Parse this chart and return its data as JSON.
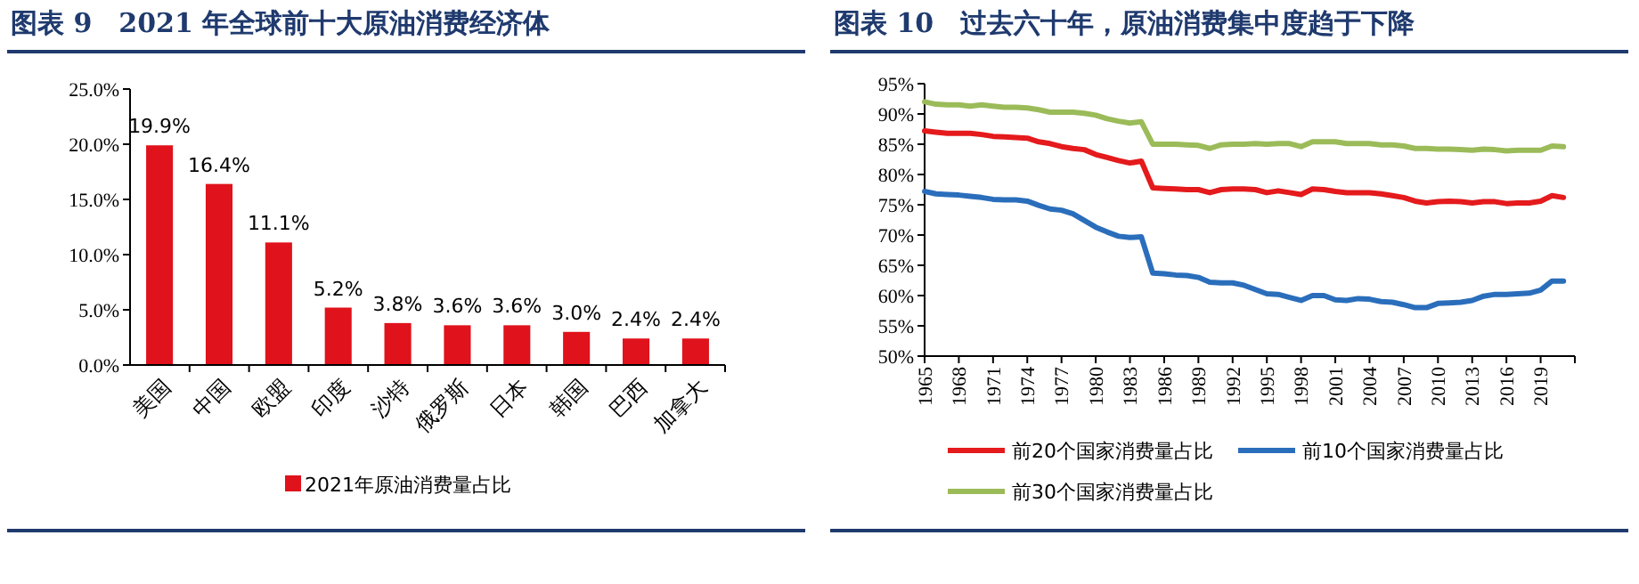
{
  "chart_data": [
    {
      "type": "bar",
      "title": "图表 9　2021 年全球前十大原油消费经济体",
      "categories": [
        "美国",
        "中国",
        "欧盟",
        "印度",
        "沙特",
        "俄罗斯",
        "日本",
        "韩国",
        "巴西",
        "加拿大"
      ],
      "series": [
        {
          "name": "2021年原油消费量占比",
          "color": "#e0121b",
          "values": [
            19.9,
            16.4,
            11.1,
            5.2,
            3.8,
            3.6,
            3.6,
            3.0,
            2.4,
            2.4
          ],
          "value_labels": [
            "19.9%",
            "16.4%",
            "11.1%",
            "5.2%",
            "3.8%",
            "3.6%",
            "3.6%",
            "3.0%",
            "2.4%",
            "2.4%"
          ]
        }
      ],
      "ylim": [
        0,
        25
      ],
      "yticks": [
        {
          "value": 0,
          "label": "0.0%"
        },
        {
          "value": 5,
          "label": "5.0%"
        },
        {
          "value": 10,
          "label": "10.0%"
        },
        {
          "value": 15,
          "label": "15.0%"
        },
        {
          "value": 20,
          "label": "20.0%"
        },
        {
          "value": 25,
          "label": "25.0%"
        }
      ],
      "legend": "bottom"
    },
    {
      "type": "line",
      "title": "图表 10　过去六十年，原油消费集中度趋于下降",
      "x": [
        1965,
        1966,
        1967,
        1968,
        1969,
        1970,
        1971,
        1972,
        1973,
        1974,
        1975,
        1976,
        1977,
        1978,
        1979,
        1980,
        1981,
        1982,
        1983,
        1984,
        1985,
        1986,
        1987,
        1988,
        1989,
        1990,
        1991,
        1992,
        1993,
        1994,
        1995,
        1996,
        1997,
        1998,
        1999,
        2000,
        2001,
        2002,
        2003,
        2004,
        2005,
        2006,
        2007,
        2008,
        2009,
        2010,
        2011,
        2012,
        2013,
        2014,
        2015,
        2016,
        2017,
        2018,
        2019,
        2020,
        2021
      ],
      "series": [
        {
          "name": "前20个国家消费量占比",
          "color": "#e41a1c",
          "values": [
            87.2,
            87,
            86.8,
            86.8,
            86.8,
            86.6,
            86.3,
            86.2,
            86.1,
            86,
            85.4,
            85.1,
            84.6,
            84.3,
            84.1,
            83.3,
            82.8,
            82.3,
            81.9,
            82.2,
            77.8,
            77.7,
            77.6,
            77.5,
            77.5,
            77,
            77.5,
            77.6,
            77.6,
            77.5,
            77,
            77.3,
            77,
            76.7,
            77.6,
            77.5,
            77.2,
            77,
            77,
            77,
            76.8,
            76.5,
            76.2,
            75.6,
            75.3,
            75.5,
            75.6,
            75.5,
            75.3,
            75.5,
            75.5,
            75.2,
            75.3,
            75.3,
            75.6,
            76.5,
            76.2
          ]
        },
        {
          "name": "前10个国家消费量占比",
          "color": "#2a6ebb",
          "values": [
            77.2,
            76.8,
            76.7,
            76.6,
            76.4,
            76.2,
            75.9,
            75.8,
            75.8,
            75.6,
            74.9,
            74.3,
            74.1,
            73.5,
            72.4,
            71.3,
            70.5,
            69.8,
            69.6,
            69.7,
            63.7,
            63.6,
            63.4,
            63.3,
            63,
            62.2,
            62.1,
            62.1,
            61.7,
            61,
            60.3,
            60.2,
            59.7,
            59.2,
            60,
            60,
            59.3,
            59.2,
            59.5,
            59.4,
            59,
            58.9,
            58.5,
            58,
            58,
            58.7,
            58.8,
            58.9,
            59.2,
            59.9,
            60.2,
            60.2,
            60.3,
            60.4,
            60.9,
            62.4,
            62.4
          ]
        },
        {
          "name": "前30个国家消费量占比",
          "color": "#9bbb59",
          "values": [
            92,
            91.6,
            91.5,
            91.5,
            91.3,
            91.5,
            91.3,
            91.1,
            91.1,
            91,
            90.7,
            90.3,
            90.3,
            90.3,
            90.1,
            89.8,
            89.2,
            88.8,
            88.5,
            88.7,
            85,
            85,
            85,
            84.9,
            84.8,
            84.3,
            84.9,
            85,
            85,
            85.1,
            85,
            85.1,
            85.1,
            84.6,
            85.4,
            85.4,
            85.4,
            85.1,
            85.1,
            85.1,
            84.9,
            84.9,
            84.7,
            84.3,
            84.3,
            84.2,
            84.2,
            84.1,
            84,
            84.2,
            84.1,
            83.9,
            84,
            84,
            84,
            84.7,
            84.6
          ]
        }
      ],
      "xlim": [
        1965,
        2022
      ],
      "xticks": [
        1965,
        1968,
        1971,
        1974,
        1977,
        1980,
        1983,
        1986,
        1989,
        1992,
        1995,
        1998,
        2001,
        2004,
        2007,
        2010,
        2013,
        2016,
        2019,
        {
          "value": 2022,
          "label": null
        }
      ],
      "ylim": [
        50,
        95
      ],
      "yticks": [
        {
          "value": 50,
          "label": "50%"
        },
        {
          "value": 55,
          "label": "55%"
        },
        {
          "value": 60,
          "label": "60%"
        },
        {
          "value": 65,
          "label": "65%"
        },
        {
          "value": 70,
          "label": "70%"
        },
        {
          "value": 75,
          "label": "75%"
        },
        {
          "value": 80,
          "label": "80%"
        },
        {
          "value": 85,
          "label": "85%"
        },
        {
          "value": 90,
          "label": "90%"
        },
        {
          "value": 95,
          "label": "95%"
        }
      ],
      "legend": "bottom"
    }
  ]
}
